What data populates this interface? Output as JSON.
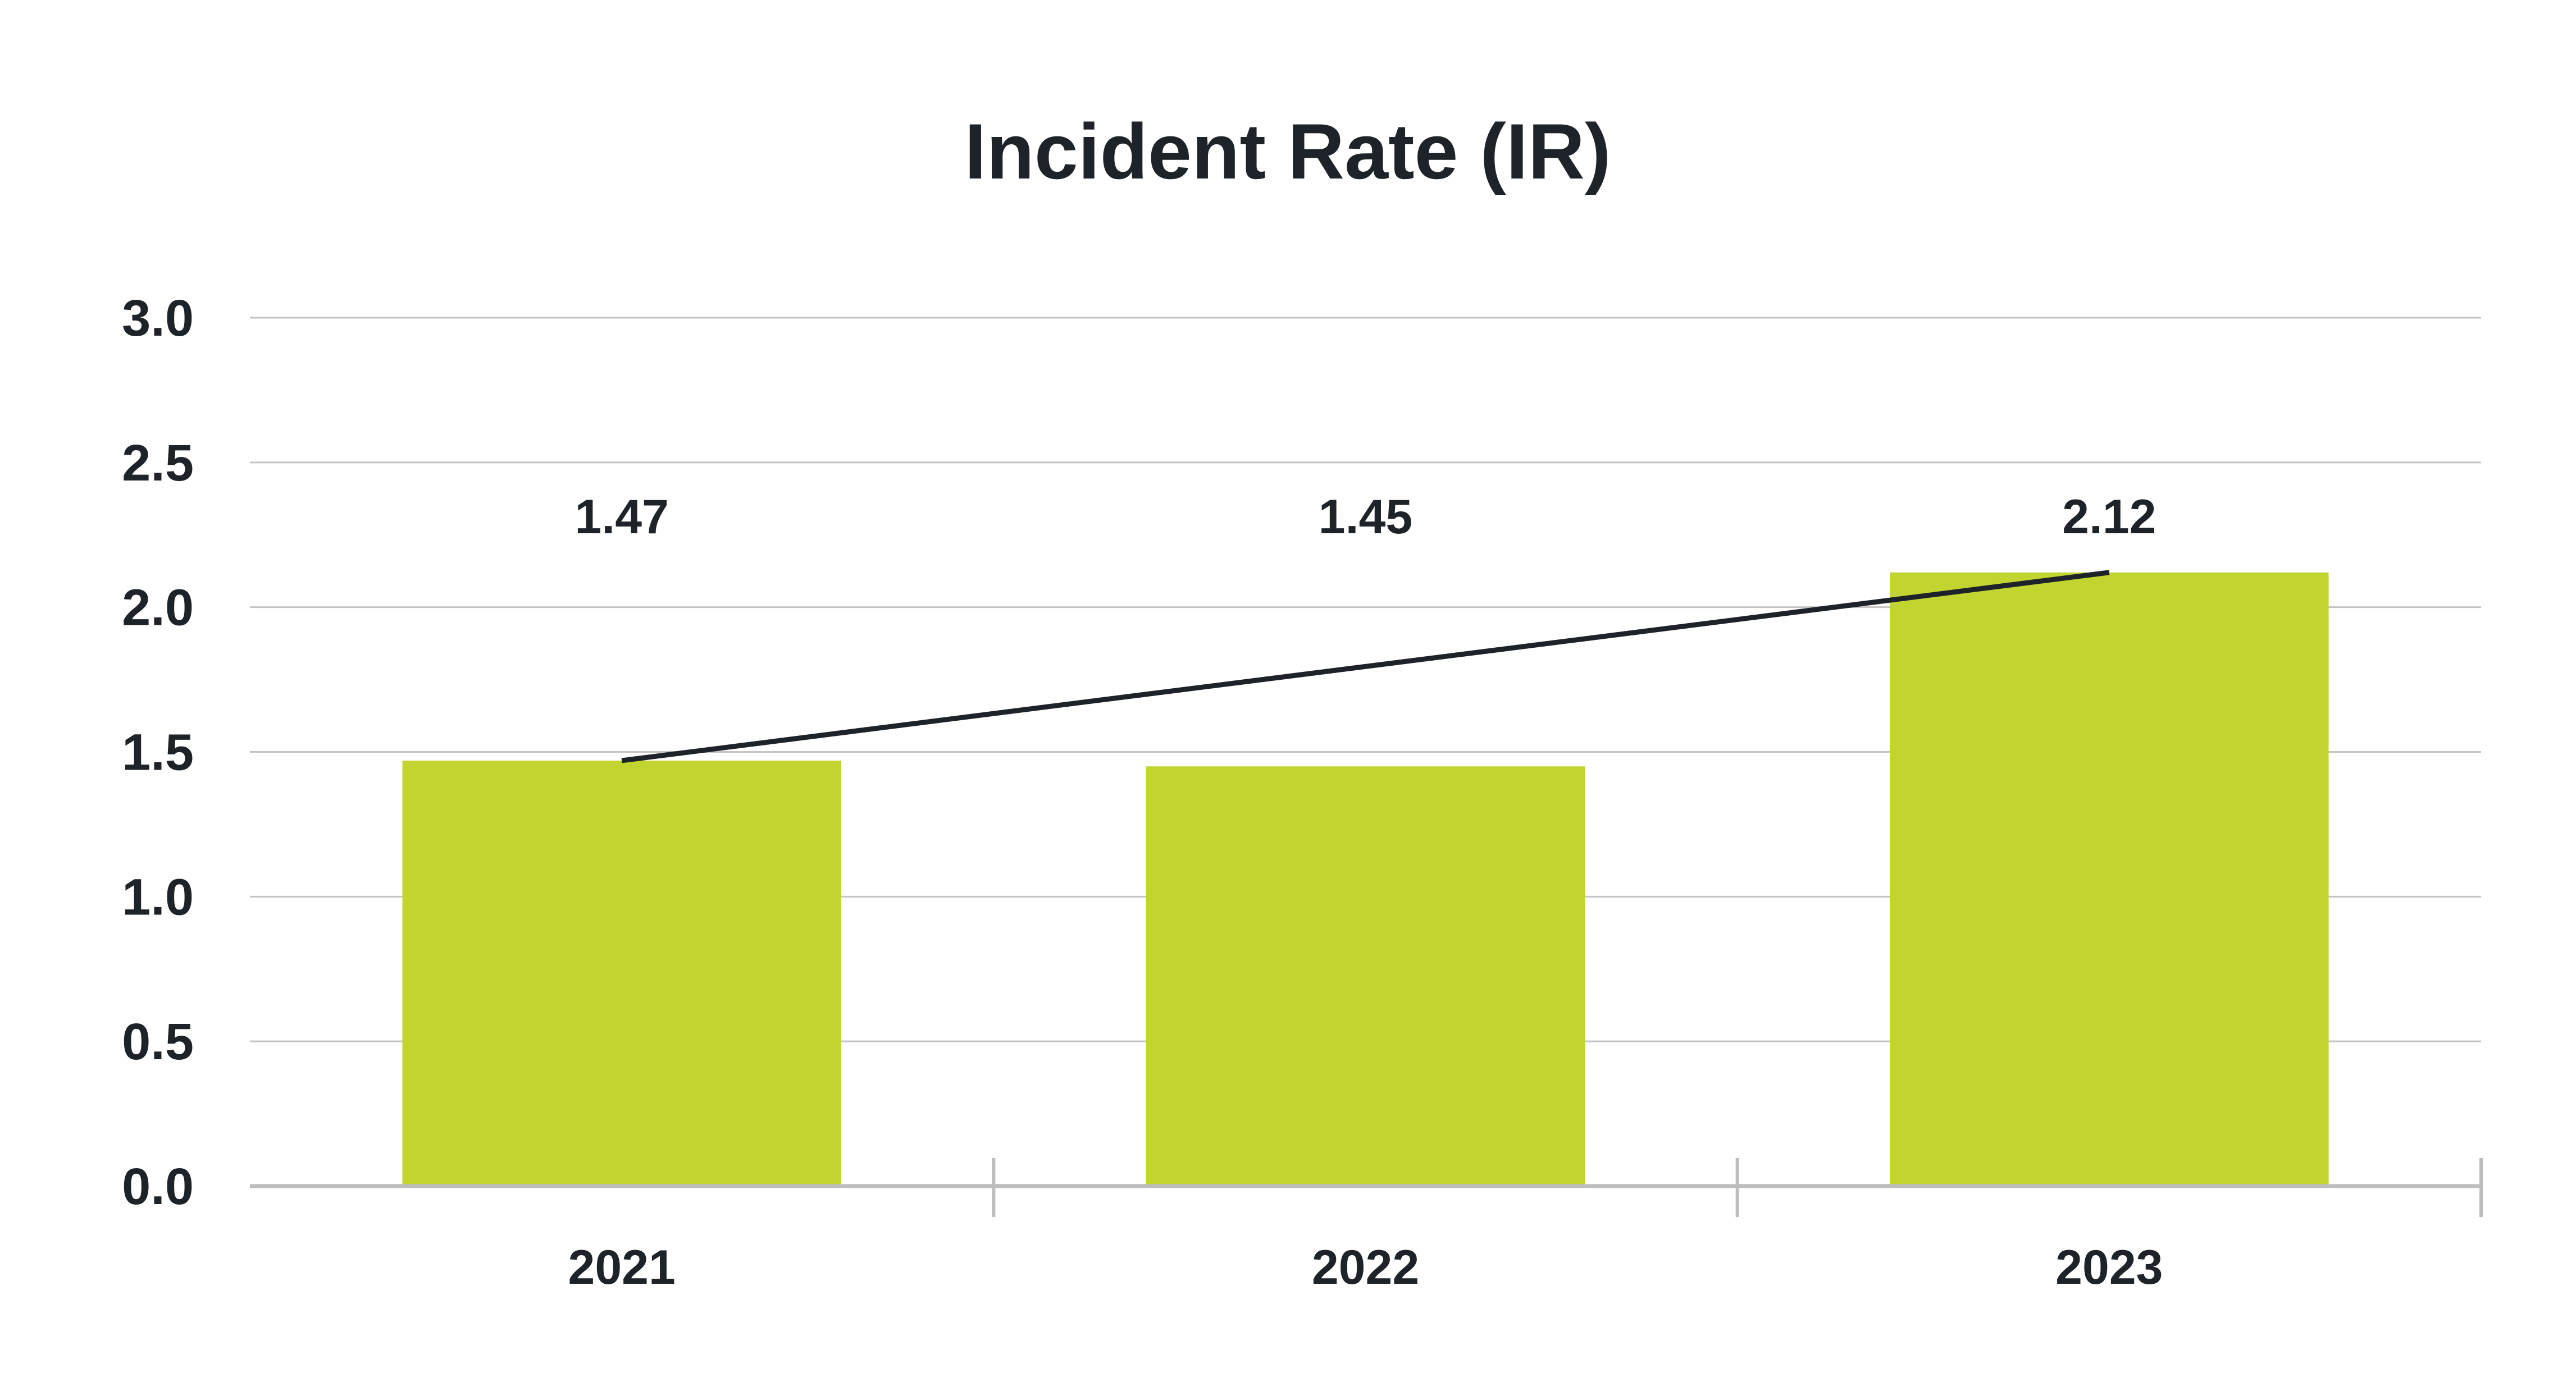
{
  "chart_data": {
    "type": "bar",
    "title": "Incident Rate (IR)",
    "xlabel": "",
    "ylabel": "",
    "categories": [
      "2021",
      "2022",
      "2023"
    ],
    "values": [
      1.47,
      1.45,
      2.12
    ],
    "data_labels": [
      "1.47",
      "1.45",
      "2.12"
    ],
    "y_ticks": [
      "0.0",
      "0.5",
      "1.0",
      "1.5",
      "2.0",
      "2.5",
      "3.0"
    ],
    "ylim": [
      0,
      3.0
    ],
    "grid": true,
    "legend": "none",
    "trendline": {
      "type": "linear",
      "from": 1.47,
      "to": 2.12
    },
    "colors": {
      "bar": "#c1d42f",
      "trendline": "#1d2328",
      "grid": "#c4c4c4",
      "axis": "#bdbdbd",
      "text": "#1d2328"
    }
  }
}
